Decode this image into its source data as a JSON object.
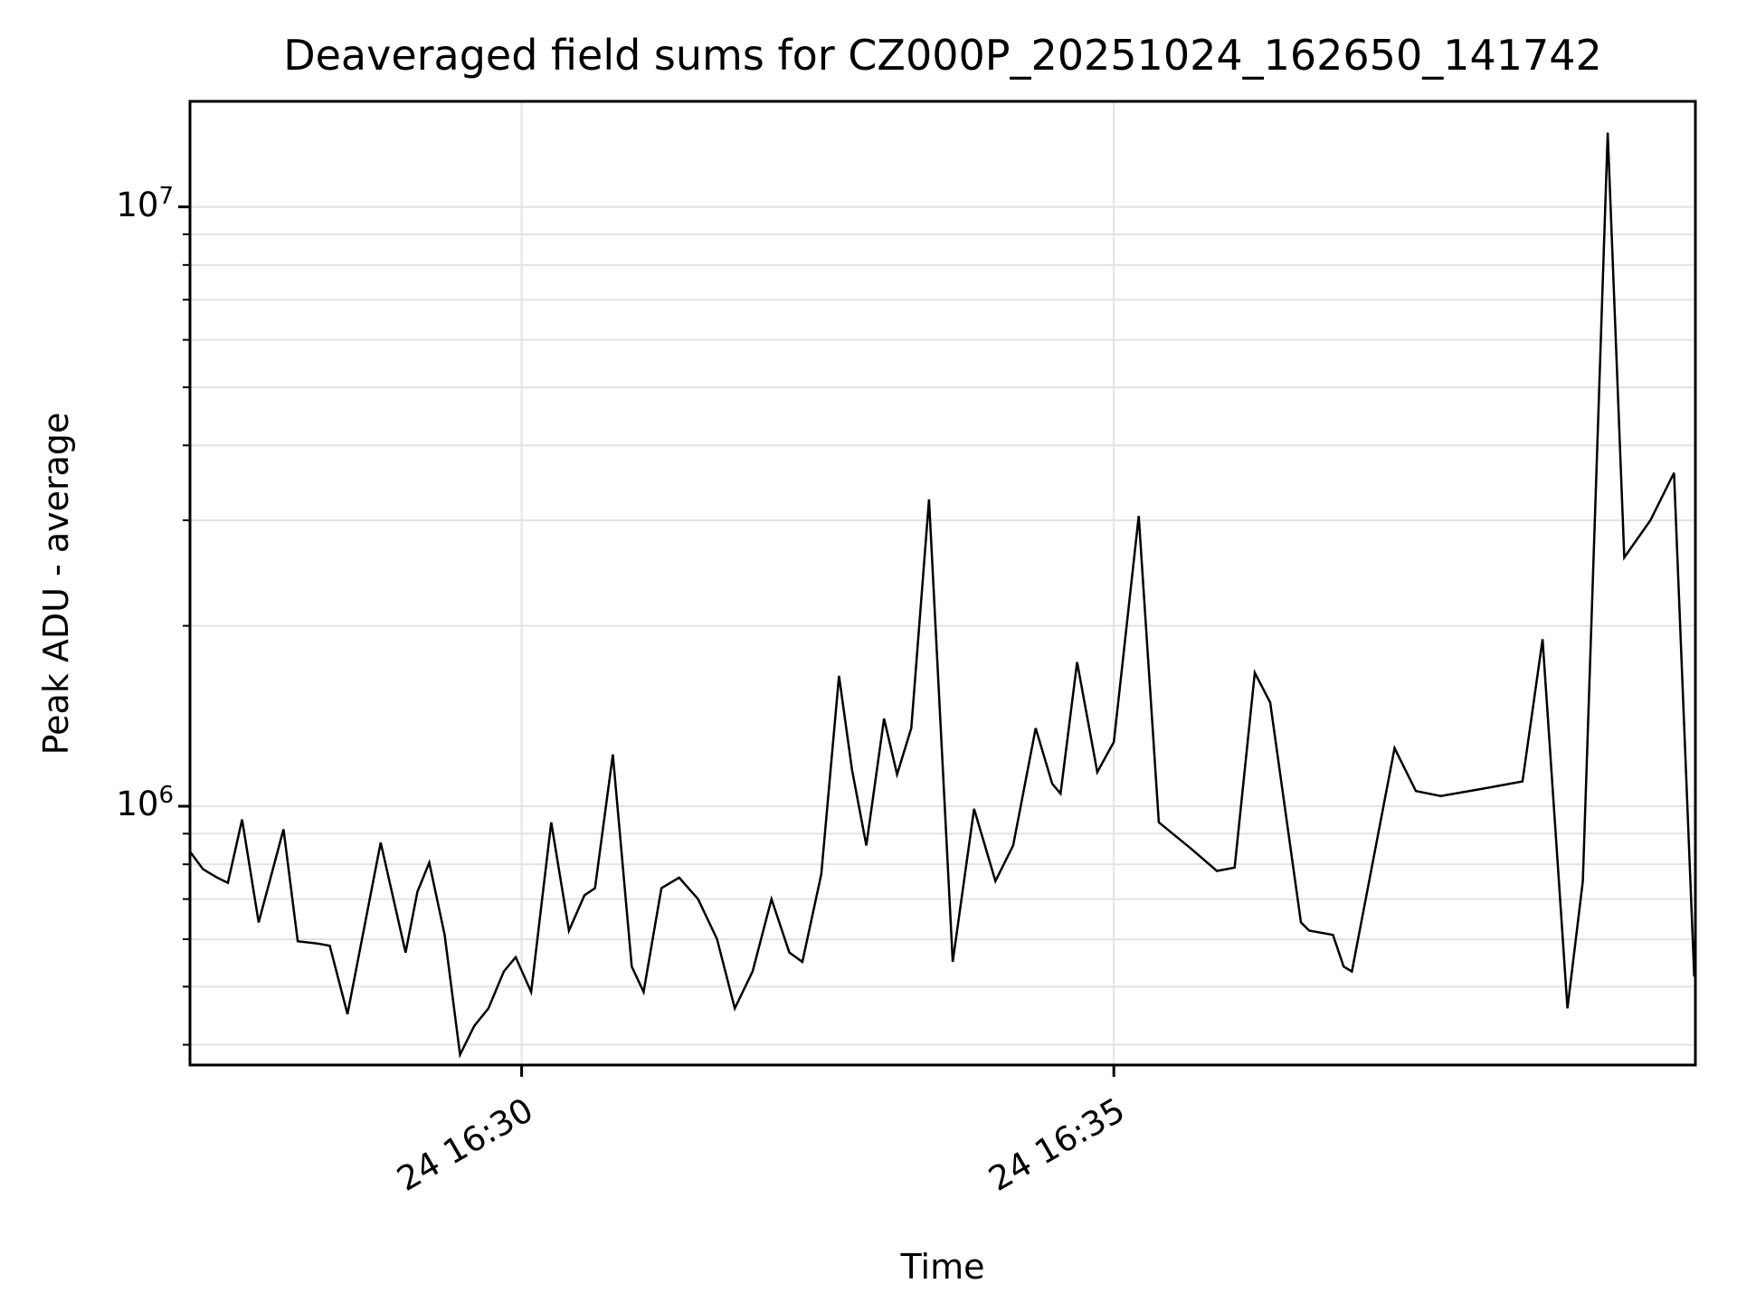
{
  "title": "Deaveraged field sums for CZ000P_20251024_162650_141742",
  "chart_data": {
    "type": "line",
    "title": "Deaveraged field sums for CZ000P_20251024_162650_141742",
    "xlabel": "Time",
    "ylabel": "Peak ADU - average",
    "yscale": "log",
    "grid": true,
    "legend": "none",
    "line_color": "#000000",
    "grid_color": "#e3e3e3",
    "spine_color": "#000000",
    "x_unit": "minutes after 16:00, day 24",
    "xlim": [
      27.2,
      39.91
    ],
    "ylim": [
      370000,
      15000000
    ],
    "x_ticks": [
      {
        "t": 30,
        "label": "24 16:30"
      },
      {
        "t": 35,
        "label": "24 16:35"
      }
    ],
    "y_ticks": [
      {
        "value": 1000000,
        "base": "10",
        "exp": "6"
      },
      {
        "value": 10000000,
        "base": "10",
        "exp": "7"
      }
    ],
    "x": [
      27.2,
      27.31,
      27.43,
      27.52,
      27.64,
      27.78,
      27.99,
      28.11,
      28.28,
      28.38,
      28.53,
      28.81,
      29.02,
      29.12,
      29.22,
      29.35,
      29.48,
      29.6,
      29.72,
      29.85,
      29.95,
      30.08,
      30.25,
      30.4,
      30.53,
      30.62,
      30.77,
      30.93,
      31.03,
      31.18,
      31.33,
      31.49,
      31.65,
      31.8,
      31.95,
      32.11,
      32.26,
      32.37,
      32.53,
      32.68,
      32.79,
      32.91,
      33.06,
      33.17,
      33.29,
      33.44,
      33.64,
      33.82,
      34.0,
      34.15,
      34.34,
      34.48,
      34.55,
      34.69,
      34.86,
      35.0,
      35.21,
      35.38,
      35.65,
      35.87,
      36.02,
      36.19,
      36.32,
      36.58,
      36.65,
      36.85,
      36.94,
      37.01,
      37.37,
      37.55,
      37.76,
      38.12,
      38.45,
      38.62,
      38.83,
      38.96,
      39.17,
      39.31,
      39.53,
      39.73,
      39.9
    ],
    "y": [
      840000,
      785000,
      760000,
      745000,
      950000,
      640000,
      915000,
      595000,
      590000,
      585000,
      450000,
      870000,
      570000,
      720000,
      805000,
      610000,
      385000,
      430000,
      460000,
      530000,
      560000,
      490000,
      940000,
      620000,
      710000,
      730000,
      1220000,
      540000,
      490000,
      730000,
      760000,
      700000,
      600000,
      460000,
      530000,
      700000,
      570000,
      550000,
      770000,
      1650000,
      1150000,
      860000,
      1400000,
      1130000,
      1350000,
      3250000,
      550000,
      990000,
      750000,
      860000,
      1350000,
      1090000,
      1050000,
      1740000,
      1140000,
      1280000,
      3050000,
      940000,
      850000,
      780000,
      790000,
      1670000,
      1490000,
      640000,
      620000,
      610000,
      540000,
      530000,
      1250000,
      1060000,
      1040000,
      1070000,
      1100000,
      1900000,
      460000,
      750000,
      13300000,
      2600000,
      3000000,
      3600000,
      520000
    ]
  }
}
